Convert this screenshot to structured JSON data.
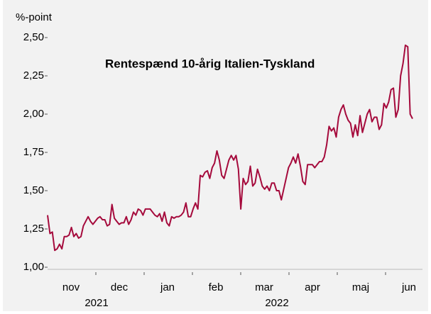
{
  "chart_data": {
    "type": "line",
    "y_label": "%-point",
    "annotation": "Rentespænd 10-årig Italien-Tyskland",
    "color": "#a50a3c",
    "months": [
      "nov",
      "dec",
      "jan",
      "feb",
      "mar",
      "apr",
      "maj",
      "jun"
    ],
    "years": [
      "2021",
      "2022"
    ],
    "ylim": [
      1.0,
      2.5
    ],
    "yticks": [
      {
        "value": 1.0,
        "label": "1,00"
      },
      {
        "value": 1.25,
        "label": "1,25"
      },
      {
        "value": 1.5,
        "label": "1,50"
      },
      {
        "value": 1.75,
        "label": "1,75"
      },
      {
        "value": 2.0,
        "label": "2,00"
      },
      {
        "value": 2.25,
        "label": "2,25"
      },
      {
        "value": 2.5,
        "label": "2,50"
      }
    ],
    "values": [
      1.34,
      1.22,
      1.23,
      1.11,
      1.12,
      1.15,
      1.12,
      1.2,
      1.2,
      1.21,
      1.26,
      1.2,
      1.22,
      1.19,
      1.2,
      1.27,
      1.3,
      1.33,
      1.3,
      1.28,
      1.3,
      1.32,
      1.33,
      1.31,
      1.31,
      1.27,
      1.28,
      1.41,
      1.32,
      1.3,
      1.28,
      1.29,
      1.29,
      1.33,
      1.28,
      1.31,
      1.36,
      1.34,
      1.38,
      1.37,
      1.34,
      1.38,
      1.38,
      1.38,
      1.36,
      1.34,
      1.33,
      1.35,
      1.3,
      1.36,
      1.29,
      1.27,
      1.33,
      1.32,
      1.33,
      1.33,
      1.34,
      1.36,
      1.42,
      1.33,
      1.33,
      1.38,
      1.42,
      1.38,
      1.6,
      1.59,
      1.62,
      1.63,
      1.58,
      1.65,
      1.68,
      1.76,
      1.7,
      1.6,
      1.58,
      1.64,
      1.7,
      1.73,
      1.7,
      1.73,
      1.64,
      1.38,
      1.58,
      1.54,
      1.56,
      1.66,
      1.53,
      1.55,
      1.64,
      1.59,
      1.53,
      1.51,
      1.53,
      1.5,
      1.55,
      1.55,
      1.5,
      1.5,
      1.44,
      1.51,
      1.58,
      1.65,
      1.68,
      1.72,
      1.68,
      1.74,
      1.66,
      1.56,
      1.54,
      1.67,
      1.67,
      1.67,
      1.65,
      1.67,
      1.69,
      1.69,
      1.72,
      1.8,
      1.92,
      1.89,
      1.91,
      1.85,
      1.98,
      2.03,
      2.06,
      2.0,
      1.96,
      1.94,
      1.85,
      1.93,
      1.86,
      1.99,
      1.88,
      1.94,
      2.0,
      2.03,
      1.95,
      1.98,
      1.98,
      1.9,
      1.93,
      2.07,
      2.04,
      2.08,
      2.16,
      2.17,
      1.98,
      2.03,
      2.25,
      2.33,
      2.45,
      2.44,
      2.0,
      1.97
    ]
  }
}
